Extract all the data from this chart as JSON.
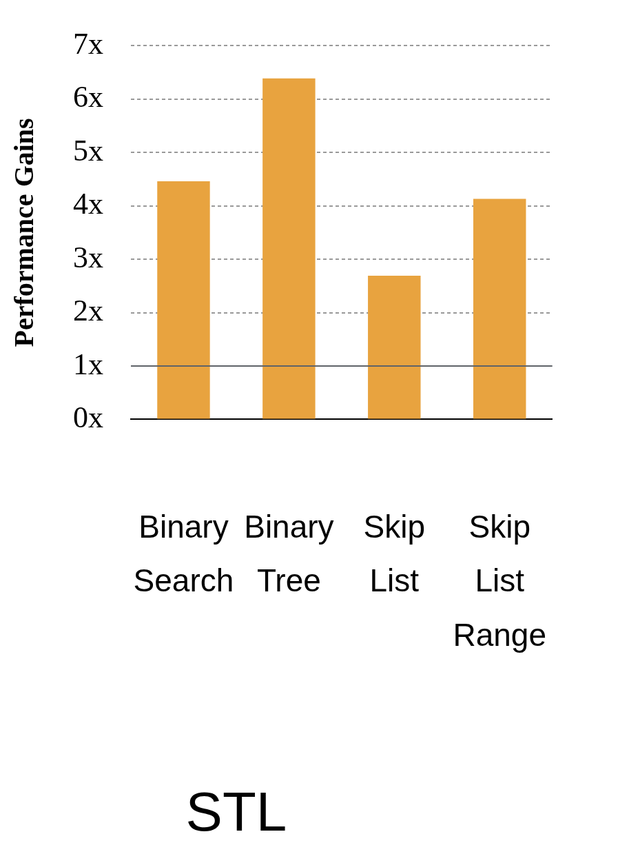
{
  "chart_data": {
    "type": "bar",
    "ylabel": "Performance Gains",
    "categories": [
      "Binary Search",
      "Binary Tree",
      "Skip List",
      "Skip List Range"
    ],
    "values": [
      4.46,
      6.39,
      2.69,
      4.13
    ],
    "color": "#e8a33f",
    "ylim": [
      0,
      7
    ],
    "yticks": [
      {
        "value": 0,
        "label": "0x"
      },
      {
        "value": 1,
        "label": "1x"
      },
      {
        "value": 2,
        "label": "2x"
      },
      {
        "value": 3,
        "label": "3x"
      },
      {
        "value": 4,
        "label": "4x"
      },
      {
        "value": 5,
        "label": "5x"
      },
      {
        "value": 6,
        "label": "6x"
      },
      {
        "value": 7,
        "label": "7x"
      }
    ],
    "grid": "y",
    "ref_lines": [
      {
        "axis": "y",
        "value": 1,
        "color": "#5f6368"
      }
    ],
    "annotations": [
      "STL"
    ],
    "legend": false
  }
}
